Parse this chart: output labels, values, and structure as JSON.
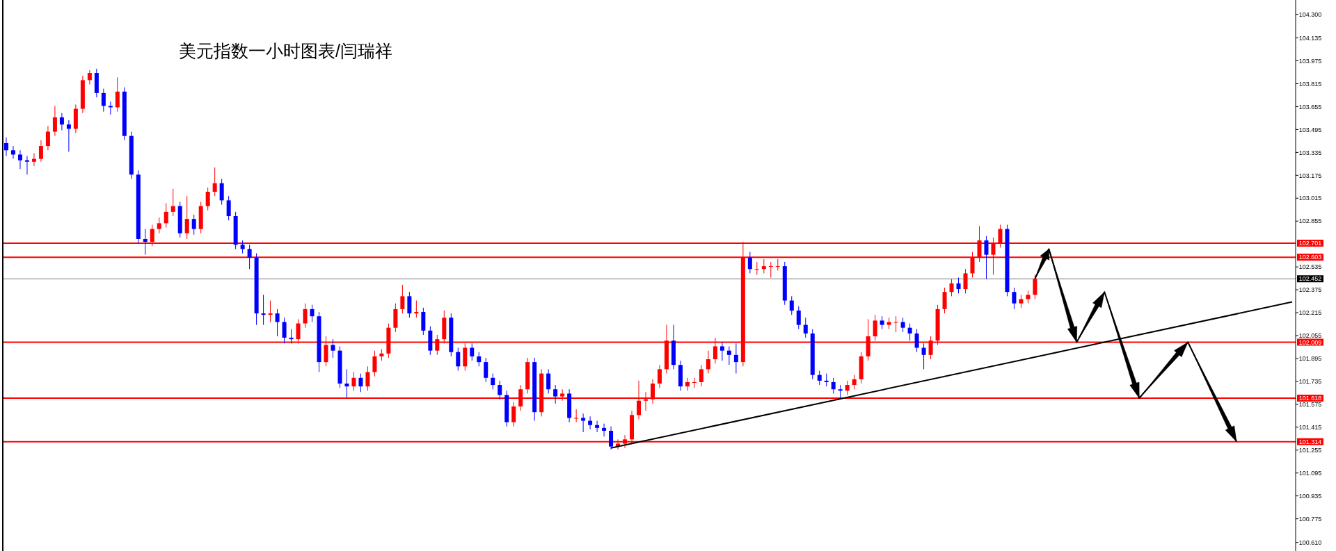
{
  "chart_data": {
    "type": "candlestick",
    "title": "美元指数一小时图表/闫瑞祥",
    "categories": [
      null,
      null,
      null,
      null,
      null,
      null,
      null,
      null,
      null,
      null,
      null,
      null,
      null,
      null,
      null,
      null,
      null,
      null,
      null,
      null,
      null,
      null,
      null,
      null,
      null,
      null,
      null,
      null,
      null,
      null,
      null,
      null,
      null,
      null,
      null,
      null,
      null,
      null,
      null,
      null,
      null,
      null,
      null,
      null,
      null,
      null,
      null,
      null,
      null,
      null,
      null,
      null,
      null,
      null,
      null,
      null,
      null,
      null,
      null,
      null,
      null,
      null,
      null,
      null,
      null,
      null,
      null,
      null,
      null,
      null,
      null,
      null,
      null,
      null,
      null,
      null,
      null,
      null,
      null,
      null,
      null,
      null,
      null,
      null,
      null,
      null,
      null,
      null,
      null,
      null,
      null,
      null,
      null,
      null,
      null,
      null,
      null,
      null,
      null,
      null,
      null,
      null,
      null,
      null,
      null,
      null,
      null,
      null,
      null,
      null,
      null,
      null,
      null,
      null,
      null,
      null,
      null,
      null,
      null,
      null,
      null,
      null,
      null,
      null,
      null,
      null,
      null,
      null,
      null,
      null,
      null,
      null,
      null,
      null,
      null,
      null,
      null,
      null,
      null,
      null,
      null,
      null,
      null,
      null,
      null,
      null,
      null,
      null,
      null,
      null,
      null,
      null,
      null,
      null,
      null,
      null,
      null,
      null,
      null,
      null,
      null,
      null,
      null,
      null,
      null,
      null,
      null,
      null,
      null,
      null,
      null,
      null,
      null,
      null,
      null,
      null,
      null,
      null,
      null,
      null,
      null,
      null,
      null,
      null,
      null,
      null
    ],
    "ohlc": [
      [
        103.4,
        103.44,
        103.31,
        103.35
      ],
      [
        103.35,
        103.38,
        103.29,
        103.32
      ],
      [
        103.32,
        103.35,
        103.22,
        103.28
      ],
      [
        103.28,
        103.31,
        103.18,
        103.27
      ],
      [
        103.27,
        103.33,
        103.24,
        103.29
      ],
      [
        103.29,
        103.42,
        103.27,
        103.38
      ],
      [
        103.38,
        103.52,
        103.35,
        103.48
      ],
      [
        103.48,
        103.66,
        103.45,
        103.58
      ],
      [
        103.58,
        103.61,
        103.49,
        103.53
      ],
      [
        103.53,
        103.56,
        103.34,
        103.5
      ],
      [
        103.5,
        103.67,
        103.47,
        103.64
      ],
      [
        103.64,
        103.87,
        103.61,
        103.84
      ],
      [
        103.84,
        103.91,
        103.81,
        103.89
      ],
      [
        103.89,
        103.92,
        103.72,
        103.75
      ],
      [
        103.75,
        103.78,
        103.62,
        103.66
      ],
      [
        103.66,
        103.69,
        103.6,
        103.65
      ],
      [
        103.65,
        103.86,
        103.62,
        103.76
      ],
      [
        103.76,
        103.79,
        103.42,
        103.45
      ],
      [
        103.45,
        103.48,
        103.15,
        103.18
      ],
      [
        103.18,
        103.21,
        102.7,
        102.73
      ],
      [
        102.73,
        102.8,
        102.62,
        102.71
      ],
      [
        102.71,
        102.83,
        102.68,
        102.8
      ],
      [
        102.8,
        102.88,
        102.77,
        102.84
      ],
      [
        102.84,
        102.98,
        102.81,
        102.92
      ],
      [
        102.92,
        103.08,
        102.89,
        102.96
      ],
      [
        102.96,
        102.99,
        102.74,
        102.77
      ],
      [
        102.77,
        103.03,
        102.73,
        102.87
      ],
      [
        102.87,
        102.9,
        102.76,
        102.8
      ],
      [
        102.8,
        102.99,
        102.77,
        102.96
      ],
      [
        102.96,
        103.09,
        102.93,
        103.06
      ],
      [
        103.06,
        103.23,
        103.03,
        103.12
      ],
      [
        103.12,
        103.15,
        102.97,
        103.0
      ],
      [
        103.0,
        103.03,
        102.86,
        102.89
      ],
      [
        102.89,
        102.92,
        102.66,
        102.69
      ],
      [
        102.69,
        102.72,
        102.63,
        102.66
      ],
      [
        102.66,
        102.69,
        102.52,
        102.6
      ],
      [
        102.6,
        102.63,
        102.13,
        102.21
      ],
      [
        102.21,
        102.34,
        102.13,
        102.2
      ],
      [
        102.2,
        102.3,
        102.15,
        102.21
      ],
      [
        102.21,
        102.24,
        102.05,
        102.15
      ],
      [
        102.15,
        102.18,
        102.0,
        102.04
      ],
      [
        102.04,
        102.1,
        102.0,
        102.03
      ],
      [
        102.03,
        102.17,
        102.0,
        102.14
      ],
      [
        102.14,
        102.28,
        102.11,
        102.24
      ],
      [
        102.24,
        102.27,
        102.15,
        102.19
      ],
      [
        102.19,
        102.22,
        101.8,
        101.87
      ],
      [
        101.87,
        102.05,
        101.84,
        101.99
      ],
      [
        101.99,
        102.03,
        101.9,
        101.95
      ],
      [
        101.95,
        101.98,
        101.69,
        101.72
      ],
      [
        101.72,
        101.82,
        101.62,
        101.7
      ],
      [
        101.7,
        101.8,
        101.67,
        101.76
      ],
      [
        101.76,
        101.79,
        101.66,
        101.7
      ],
      [
        101.7,
        101.84,
        101.67,
        101.8
      ],
      [
        101.8,
        101.95,
        101.77,
        101.91
      ],
      [
        101.91,
        101.96,
        101.88,
        101.93
      ],
      [
        101.93,
        102.14,
        101.9,
        102.11
      ],
      [
        102.11,
        102.28,
        102.08,
        102.24
      ],
      [
        102.24,
        102.41,
        102.21,
        102.33
      ],
      [
        102.33,
        102.36,
        102.18,
        102.21
      ],
      [
        102.21,
        102.3,
        102.18,
        102.22
      ],
      [
        102.22,
        102.25,
        102.06,
        102.09
      ],
      [
        102.09,
        102.12,
        101.92,
        101.95
      ],
      [
        101.95,
        102.06,
        101.92,
        102.03
      ],
      [
        102.03,
        102.23,
        102.0,
        102.18
      ],
      [
        102.18,
        102.21,
        101.91,
        101.94
      ],
      [
        101.94,
        101.97,
        101.81,
        101.84
      ],
      [
        101.84,
        102.0,
        101.81,
        101.97
      ],
      [
        101.97,
        102.0,
        101.88,
        101.91
      ],
      [
        101.91,
        101.94,
        101.84,
        101.87
      ],
      [
        101.87,
        101.9,
        101.73,
        101.76
      ],
      [
        101.76,
        101.79,
        101.68,
        101.71
      ],
      [
        101.71,
        101.74,
        101.61,
        101.64
      ],
      [
        101.64,
        101.67,
        101.42,
        101.45
      ],
      [
        101.45,
        101.59,
        101.42,
        101.56
      ],
      [
        101.56,
        101.71,
        101.53,
        101.68
      ],
      [
        101.68,
        101.9,
        101.65,
        101.87
      ],
      [
        101.87,
        101.9,
        101.46,
        101.52
      ],
      [
        101.52,
        101.82,
        101.49,
        101.79
      ],
      [
        101.79,
        101.82,
        101.65,
        101.68
      ],
      [
        101.68,
        101.71,
        101.58,
        101.63
      ],
      [
        101.63,
        101.68,
        101.6,
        101.65
      ],
      [
        101.65,
        101.68,
        101.45,
        101.48
      ],
      [
        101.48,
        101.54,
        101.45,
        101.48
      ],
      [
        101.48,
        101.51,
        101.38,
        101.46
      ],
      [
        101.46,
        101.49,
        101.4,
        101.43
      ],
      [
        101.43,
        101.46,
        101.38,
        101.41
      ],
      [
        101.41,
        101.44,
        101.35,
        101.39
      ],
      [
        101.39,
        101.42,
        101.26,
        101.28
      ],
      [
        101.28,
        101.33,
        101.26,
        101.3
      ],
      [
        101.3,
        101.36,
        101.27,
        101.33
      ],
      [
        101.33,
        101.53,
        101.3,
        101.5
      ],
      [
        101.5,
        101.74,
        101.47,
        101.6
      ],
      [
        101.6,
        101.66,
        101.53,
        101.61
      ],
      [
        101.61,
        101.75,
        101.58,
        101.72
      ],
      [
        101.72,
        101.85,
        101.69,
        101.82
      ],
      [
        101.82,
        102.13,
        101.79,
        102.02
      ],
      [
        102.02,
        102.13,
        101.82,
        101.85
      ],
      [
        101.85,
        101.88,
        101.67,
        101.7
      ],
      [
        101.7,
        101.76,
        101.67,
        101.73
      ],
      [
        101.73,
        101.76,
        101.69,
        101.73
      ],
      [
        101.73,
        101.85,
        101.7,
        101.82
      ],
      [
        101.82,
        101.95,
        101.79,
        101.89
      ],
      [
        101.89,
        102.04,
        101.86,
        101.98
      ],
      [
        101.98,
        102.01,
        101.88,
        101.95
      ],
      [
        101.95,
        101.98,
        101.85,
        101.92
      ],
      [
        101.92,
        102.0,
        101.79,
        101.87
      ],
      [
        101.87,
        102.71,
        101.84,
        102.6
      ],
      [
        102.6,
        102.64,
        102.49,
        102.52
      ],
      [
        102.52,
        102.57,
        102.48,
        102.52
      ],
      [
        102.52,
        102.59,
        102.49,
        102.54
      ],
      [
        102.54,
        102.57,
        102.46,
        102.54
      ],
      [
        102.54,
        102.59,
        102.51,
        102.54
      ],
      [
        102.54,
        102.57,
        102.27,
        102.3
      ],
      [
        102.3,
        102.33,
        102.2,
        102.23
      ],
      [
        102.23,
        102.26,
        102.1,
        102.13
      ],
      [
        102.13,
        102.18,
        102.04,
        102.07
      ],
      [
        102.07,
        102.1,
        101.75,
        101.78
      ],
      [
        101.78,
        101.81,
        101.71,
        101.74
      ],
      [
        101.74,
        101.79,
        101.7,
        101.73
      ],
      [
        101.73,
        101.76,
        101.65,
        101.68
      ],
      [
        101.68,
        101.71,
        101.61,
        101.67
      ],
      [
        101.67,
        101.74,
        101.64,
        101.71
      ],
      [
        101.71,
        101.78,
        101.68,
        101.75
      ],
      [
        101.75,
        101.94,
        101.72,
        101.91
      ],
      [
        101.91,
        102.17,
        101.88,
        102.05
      ],
      [
        102.05,
        102.2,
        102.02,
        102.16
      ],
      [
        102.16,
        102.19,
        102.1,
        102.13
      ],
      [
        102.13,
        102.18,
        102.1,
        102.15
      ],
      [
        102.15,
        102.19,
        102.08,
        102.15
      ],
      [
        102.15,
        102.18,
        102.08,
        102.11
      ],
      [
        102.11,
        102.14,
        102.02,
        102.07
      ],
      [
        102.07,
        102.1,
        101.94,
        101.97
      ],
      [
        101.97,
        102.0,
        101.82,
        101.92
      ],
      [
        101.92,
        102.05,
        101.89,
        102.02
      ],
      [
        102.02,
        102.27,
        101.99,
        102.24
      ],
      [
        102.24,
        102.39,
        102.21,
        102.36
      ],
      [
        102.36,
        102.45,
        102.33,
        102.42
      ],
      [
        102.42,
        102.46,
        102.35,
        102.38
      ],
      [
        102.38,
        102.52,
        102.35,
        102.49
      ],
      [
        102.49,
        102.64,
        102.46,
        102.6
      ],
      [
        102.6,
        102.82,
        102.57,
        102.72
      ],
      [
        102.72,
        102.75,
        102.45,
        102.62
      ],
      [
        102.62,
        102.74,
        102.48,
        102.7
      ],
      [
        102.7,
        102.83,
        102.67,
        102.8
      ],
      [
        102.8,
        102.83,
        102.33,
        102.36
      ],
      [
        102.36,
        102.39,
        102.24,
        102.28
      ],
      [
        102.28,
        102.34,
        102.25,
        102.31
      ],
      [
        102.31,
        102.37,
        102.28,
        102.34
      ],
      [
        102.34,
        102.48,
        102.31,
        102.452
      ],
      null,
      null,
      null,
      null,
      null,
      null,
      null,
      null,
      null,
      null,
      null,
      null,
      null,
      null,
      null,
      null,
      null,
      null,
      null,
      null,
      null,
      null,
      null,
      null,
      null,
      null,
      null,
      null,
      null,
      null,
      null,
      null,
      null,
      null,
      null,
      null,
      null
    ],
    "colors": [
      "#0000ff",
      "#0000ff",
      "#0000ff",
      "#0000ff",
      "#ff0000",
      "#ff0000",
      "#ff0000",
      "#ff0000",
      "#0000ff",
      "#0000ff",
      "#ff0000",
      "#ff0000",
      "#ff0000",
      "#0000ff",
      "#0000ff",
      "#0000ff",
      "#ff0000",
      "#0000ff",
      "#0000ff",
      "#0000ff",
      "#0000ff",
      "#ff0000",
      "#ff0000",
      "#ff0000",
      "#ff0000",
      "#0000ff",
      "#ff0000",
      "#0000ff",
      "#ff0000",
      "#ff0000",
      "#ff0000",
      "#0000ff",
      "#0000ff",
      "#0000ff",
      "#0000ff",
      "#0000ff",
      "#0000ff",
      "#0000ff",
      "#ff0000",
      "#0000ff",
      "#0000ff",
      "#0000ff",
      "#ff0000",
      "#ff0000",
      "#0000ff",
      "#0000ff",
      "#ff0000",
      "#0000ff",
      "#0000ff",
      "#0000ff",
      "#ff0000",
      "#0000ff",
      "#ff0000",
      "#ff0000",
      "#ff0000",
      "#ff0000",
      "#ff0000",
      "#ff0000",
      "#0000ff",
      "#ff0000",
      "#0000ff",
      "#0000ff",
      "#ff0000",
      "#ff0000",
      "#0000ff",
      "#0000ff",
      "#ff0000",
      "#0000ff",
      "#0000ff",
      "#0000ff",
      "#0000ff",
      "#0000ff",
      "#0000ff",
      "#ff0000",
      "#ff0000",
      "#ff0000",
      "#0000ff",
      "#ff0000",
      "#0000ff",
      "#0000ff",
      "#ff0000",
      "#0000ff",
      "#ff0000",
      "#0000ff",
      "#0000ff",
      "#0000ff",
      "#0000ff",
      "#0000ff",
      "#ff0000",
      "#ff0000",
      "#ff0000",
      "#ff0000",
      "#ff0000",
      "#ff0000",
      "#ff0000",
      "#ff0000",
      "#0000ff",
      "#0000ff",
      "#ff0000",
      "#ff0000",
      "#ff0000",
      "#ff0000",
      "#ff0000",
      "#0000ff",
      "#0000ff",
      "#0000ff",
      "#ff0000",
      "#0000ff",
      "#ff0000",
      "#ff0000",
      "#ff0000",
      "#ff0000",
      "#0000ff",
      "#0000ff",
      "#0000ff",
      "#0000ff",
      "#0000ff",
      "#0000ff",
      "#0000ff",
      "#0000ff",
      "#0000ff",
      "#ff0000",
      "#ff0000",
      "#ff0000",
      "#ff0000",
      "#ff0000",
      "#0000ff",
      "#ff0000",
      "#ff0000",
      "#0000ff",
      "#0000ff",
      "#0000ff",
      "#0000ff",
      "#ff0000",
      "#ff0000",
      "#ff0000",
      "#ff0000",
      "#0000ff",
      "#ff0000",
      "#ff0000",
      "#ff0000",
      "#0000ff",
      "#ff0000",
      "#ff0000",
      "#0000ff",
      "#0000ff",
      "#ff0000",
      "#ff0000",
      "#ff0000",
      null,
      null,
      null,
      null,
      null,
      null,
      null,
      null,
      null,
      null,
      null,
      null,
      null,
      null,
      null,
      null,
      null,
      null,
      null,
      null,
      null,
      null,
      null,
      null,
      null,
      null,
      null,
      null,
      null,
      null,
      null,
      null,
      null,
      null,
      null,
      null,
      null
    ],
    "ylim": [
      100.55,
      104.4
    ],
    "yticks": [
      {
        "value": 104.3,
        "label": "104.300"
      },
      {
        "value": 104.135,
        "label": "104.135"
      },
      {
        "value": 103.975,
        "label": "103.975"
      },
      {
        "value": 103.815,
        "label": "103.815"
      },
      {
        "value": 103.655,
        "label": "103.655"
      },
      {
        "value": 103.495,
        "label": "103.495"
      },
      {
        "value": 103.335,
        "label": "103.335"
      },
      {
        "value": 103.175,
        "label": "103.175"
      },
      {
        "value": 103.015,
        "label": "103.015"
      },
      {
        "value": 102.855,
        "label": "102.855"
      },
      {
        "value": 102.535,
        "label": "102.535"
      },
      {
        "value": 102.375,
        "label": "102.375"
      },
      {
        "value": 102.215,
        "label": "102.215"
      },
      {
        "value": 102.055,
        "label": "102.055"
      },
      {
        "value": 101.895,
        "label": "101.895"
      },
      {
        "value": 101.735,
        "label": "101.735"
      },
      {
        "value": 101.575,
        "label": "101.575"
      },
      {
        "value": 101.415,
        "label": "101.415"
      },
      {
        "value": 101.255,
        "label": "101.255"
      },
      {
        "value": 101.095,
        "label": "101.095"
      },
      {
        "value": 100.935,
        "label": "100.935"
      },
      {
        "value": 100.775,
        "label": "100.775"
      },
      {
        "value": 100.61,
        "label": "100.610"
      }
    ],
    "tick_labels": "y",
    "grid": false,
    "series": [
      {
        "type": "line",
        "color": "#000000",
        "values": [
          null,
          null,
          null,
          null,
          null,
          null,
          null,
          null,
          null,
          null,
          null,
          null,
          null,
          null,
          null,
          null,
          null,
          null,
          null,
          null,
          null,
          null,
          null,
          null,
          null,
          null,
          null,
          null,
          null,
          null,
          null,
          null,
          null,
          null,
          null,
          null,
          null,
          null,
          null,
          null,
          null,
          null,
          null,
          null,
          null,
          null,
          null,
          null,
          null,
          null,
          null,
          null,
          null,
          null,
          null,
          null,
          null,
          null,
          null,
          null,
          null,
          null,
          null,
          null,
          null,
          null,
          null,
          null,
          null,
          null,
          null,
          null,
          null,
          null,
          null,
          null,
          null,
          null,
          null,
          null,
          null,
          null,
          null,
          null,
          null,
          null,
          null,
          101.27,
          null,
          null,
          null,
          null,
          null,
          null,
          null,
          null,
          null,
          null,
          null,
          null,
          null,
          null,
          null,
          null,
          null,
          null,
          null,
          null,
          null,
          null,
          null,
          null,
          null,
          null,
          null,
          null,
          null,
          null,
          null,
          null,
          null,
          null,
          null,
          null,
          null,
          null,
          null,
          null,
          null,
          null,
          null,
          null,
          null,
          null,
          null,
          null,
          null,
          null,
          null,
          null,
          null,
          null,
          null,
          null,
          null,
          null,
          null,
          null,
          null,
          null,
          null,
          null,
          null,
          null,
          null,
          null,
          null,
          null,
          null,
          null,
          null,
          null,
          null,
          null,
          null,
          null,
          null,
          null,
          null,
          null,
          null,
          null,
          null,
          null,
          null,
          null,
          null,
          null,
          null,
          null,
          null,
          null,
          null,
          null,
          null,
          102.29
        ]
      },
      {
        "type": "line",
        "color": "#000000",
        "values": [
          null,
          null,
          null,
          null,
          null,
          null,
          null,
          null,
          null,
          null,
          null,
          null,
          null,
          null,
          null,
          null,
          null,
          null,
          null,
          null,
          null,
          null,
          null,
          null,
          null,
          null,
          null,
          null,
          null,
          null,
          null,
          null,
          null,
          null,
          null,
          null,
          null,
          null,
          null,
          null,
          null,
          null,
          null,
          null,
          null,
          null,
          null,
          null,
          null,
          null,
          null,
          null,
          null,
          null,
          null,
          null,
          null,
          null,
          null,
          null,
          null,
          null,
          null,
          null,
          null,
          null,
          null,
          null,
          null,
          null,
          null,
          null,
          null,
          null,
          null,
          null,
          null,
          null,
          null,
          null,
          null,
          null,
          null,
          null,
          null,
          null,
          null,
          null,
          null,
          null,
          null,
          null,
          null,
          null,
          null,
          null,
          null,
          null,
          null,
          null,
          null,
          null,
          null,
          null,
          null,
          null,
          null,
          null,
          null,
          null,
          null,
          null,
          null,
          null,
          null,
          null,
          null,
          null,
          null,
          null,
          null,
          null,
          null,
          null,
          null,
          null,
          null,
          null,
          null,
          null,
          null,
          null,
          null,
          null,
          null,
          null,
          null,
          null,
          null,
          null,
          null,
          null,
          null,
          null,
          null,
          null,
          null,
          null,
          102.452,
          null,
          102.66,
          null,
          null,
          null,
          102.009,
          null,
          null,
          null,
          102.36,
          null,
          null,
          null,
          null,
          101.618,
          null,
          null,
          null,
          null,
          null,
          null,
          102.009,
          null,
          null,
          null,
          null,
          null,
          null,
          101.314,
          null,
          null,
          null,
          null,
          null,
          null,
          null,
          null
        ]
      }
    ],
    "ref_lines": [
      {
        "axis": "y",
        "value": 102.701,
        "label": "102.701",
        "color": "#ff0000"
      },
      {
        "axis": "y",
        "value": 102.603,
        "label": "102.603",
        "color": "#ff0000"
      },
      {
        "axis": "y",
        "value": 102.452,
        "label": "102.452",
        "color": "#c0c0c0"
      },
      {
        "axis": "y",
        "value": 102.009,
        "label": "102.009",
        "color": "#ff0000"
      },
      {
        "axis": "y",
        "value": 101.618,
        "label": "101.618",
        "color": "#ff0000"
      },
      {
        "axis": "y",
        "value": 101.314,
        "label": "101.314",
        "color": "#ff0000"
      }
    ]
  }
}
